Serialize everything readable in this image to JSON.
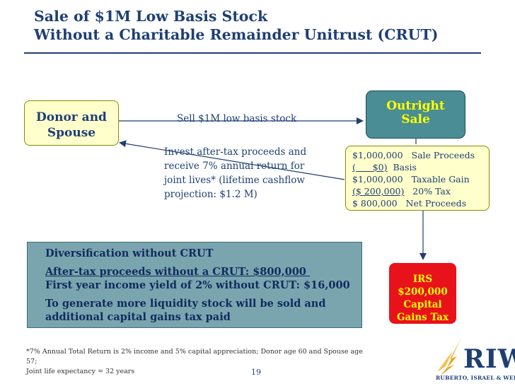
{
  "title": {
    "line1": "Sale of $1M Low Basis Stock",
    "line2": "Without a Charitable Remainder Unitrust (CRUT)"
  },
  "donor_box": {
    "line1": "Donor and",
    "line2": "Spouse"
  },
  "outright_box": {
    "line1": "Outright",
    "line2": "Sale"
  },
  "sell_label": "Sell $1M low basis stock",
  "invest_text": {
    "lines": [
      "Invest after-tax proceeds and",
      "receive 7% annual return for",
      "joint lives* (lifetime cashflow",
      "projection: $1.2 M)"
    ]
  },
  "calculation": {
    "rows": [
      {
        "amount": "$1,000,000",
        "label": "Sale Proceeds"
      },
      {
        "amount": "(      $0)",
        "label": "Basis"
      },
      {
        "amount": "$1,000,000",
        "label": "Taxable Gain"
      },
      {
        "amount": "($ 200,000)",
        "label": "20% Tax"
      },
      {
        "amount": "$ 800,000",
        "label": "Net Proceeds"
      }
    ]
  },
  "summary_box": {
    "heading": "Diversification without CRUT",
    "line1": "After-tax proceeds without a CRUT: $800,000 ",
    "line2": "First year income yield of 2% without CRUT: $16,000",
    "line3": "To generate more liquidity stock will be sold and",
    "line4": "additional capital gains tax paid"
  },
  "irs_box": {
    "line1": "IRS",
    "line2": "$200,000",
    "line3": "Capital",
    "line4": "Gains Tax"
  },
  "footnote": {
    "line1": "*7% Annual Total Return is 2% income and 5% capital appreciation; Donor age 60 and Spouse age 57;",
    "line2": "Joint life expectancy = 32 years"
  },
  "page_number": "19",
  "logo": {
    "mark": "RIW",
    "subtitle": "RUBERTO, ISRAEL & WEINER"
  },
  "colors": {
    "title": "#1f3f73",
    "yellow_fill": "#ffffcc",
    "teal_fill": "#4a8d94",
    "summary_fill": "#7aa5ae",
    "irs_fill": "#e8131a",
    "highlight_text": "#ffff00"
  }
}
